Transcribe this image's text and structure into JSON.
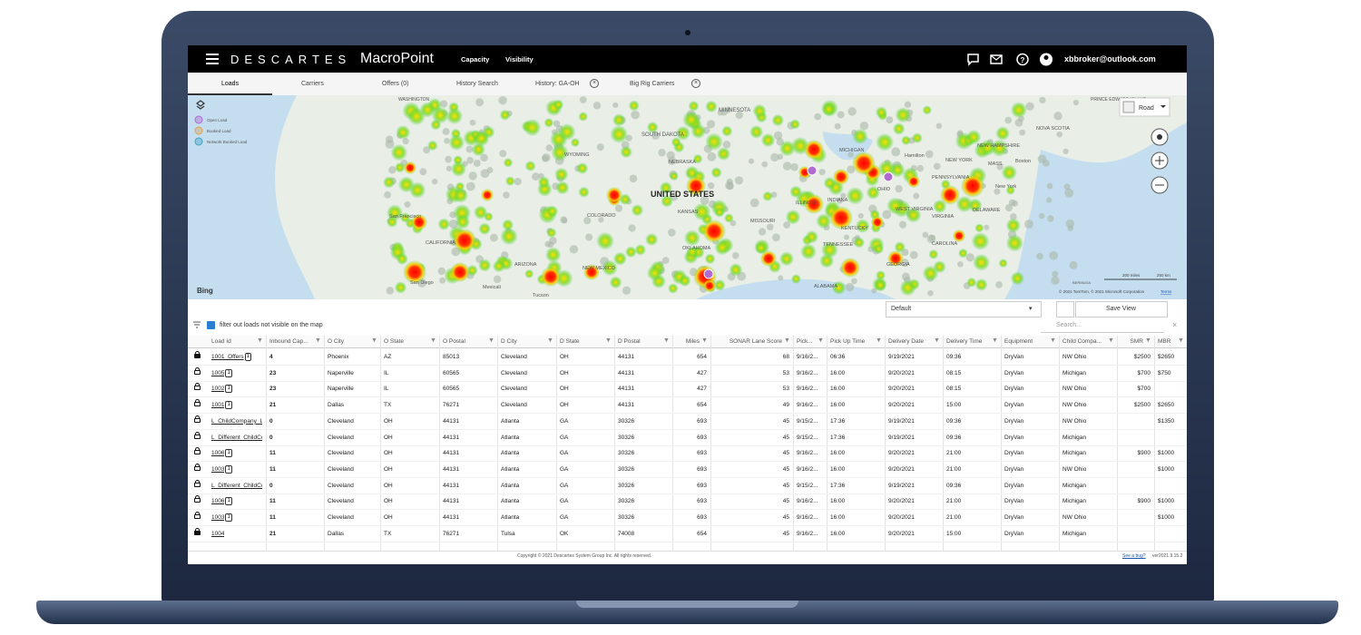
{
  "header": {
    "logo": "DESCARTES",
    "product": "MacroPoint",
    "nav": [
      "Capacity",
      "Visibility"
    ],
    "user": "xbbroker@outlook.com"
  },
  "tabs": [
    "Loads",
    "Carriers",
    "Offers (0)",
    "History Search",
    "History: GA-OH",
    "Big Rig Carriers"
  ],
  "map": {
    "legend": [
      "Open Load",
      "Booked Load",
      "Network Booked Load"
    ],
    "style": "Road",
    "provider": "Bing",
    "scale": [
      "200 miles",
      "250 km"
    ],
    "copyright": "© 2021 TomTom, © 2021 Microsoft Corporation",
    "terms": "Terms",
    "labels": [
      "UNITED STATES",
      "WASHINGTON",
      "MINNESOTA",
      "SOUTH DAKOTA",
      "WYOMING",
      "NEBRASKA",
      "COLORADO",
      "KANSAS",
      "OKLAHOMA",
      "NEW MEXICO",
      "ARIZONA",
      "CALIFORNIA",
      "MISSOURI",
      "ILLINOIS",
      "INDIANA",
      "OHIO",
      "KENTUCKY",
      "TENNESSEE",
      "GEORGIA",
      "ALABAMA",
      "MICHIGAN",
      "PENNSYLVANIA",
      "NEW YORK",
      "WEST VIRGINIA",
      "VIRGINIA",
      "CAROLINA",
      "DELAWARE",
      "NEW HAMPSHIRE",
      "MASS.",
      "Boston",
      "New York",
      "Hamilton",
      "NOVA SCOTIA",
      "PRINCE EDWARD ISLAND",
      "San Diego",
      "Mexicali",
      "Tucson",
      "San Francisco",
      "BERMUDA"
    ]
  },
  "toolbar": {
    "view": "Default",
    "save": "Save View",
    "filter": "filter out loads not visible on the map",
    "search": "Search..."
  },
  "table": {
    "columns": [
      "Load Id",
      "Inbound Cap...",
      "O City",
      "O State",
      "O Postal",
      "D City",
      "D State",
      "D Postal",
      "Miles",
      "SONAR Lane Score",
      "Pick...",
      "Pick Up Time",
      "Delivery Date",
      "Delivery Time",
      "Equipment",
      "Child Compa...",
      "SMR",
      "MBR"
    ],
    "rows": [
      {
        "badge": "1",
        "cells": [
          "1001_Offers",
          4,
          "Phoenix",
          "AZ",
          "85013",
          "Cleveland",
          "OH",
          "44131",
          654,
          68,
          "9/16/2...",
          "06:36",
          "9/19/2021",
          "09:36",
          "DryVan",
          "NW Ohio",
          "$2500",
          "$2650"
        ]
      },
      {
        "badge": "1",
        "cells": [
          "1005",
          23,
          "Naperville",
          "IL",
          "60565",
          "Cleveland",
          "OH",
          "44131",
          427,
          53,
          "9/16/2...",
          "16:00",
          "9/20/2021",
          "08:15",
          "DryVan",
          "Michigan",
          "$700",
          "$750"
        ]
      },
      {
        "badge": "1",
        "cells": [
          "1002",
          23,
          "Naperville",
          "IL",
          "60565",
          "Cleveland",
          "OH",
          "44131",
          427,
          53,
          "9/16/2...",
          "16:00",
          "9/20/2021",
          "08:15",
          "DryVan",
          "NW Ohio",
          "$700",
          null
        ]
      },
      {
        "badge": "1",
        "cells": [
          "1001",
          21,
          "Dallas",
          "TX",
          "76271",
          "Cleveland",
          "OH",
          "44131",
          654,
          49,
          "9/16/2...",
          "16:00",
          "9/20/2021",
          "15:00",
          "DryVan",
          "NW Ohio",
          "$2500",
          "$2650"
        ]
      },
      {
        "badge": null,
        "cells": [
          "L_ChildCompany_L...",
          0,
          "Cleveland",
          "OH",
          "44131",
          "Atlanta",
          "GA",
          "30326",
          693,
          45,
          "9/15/2...",
          "17:36",
          "9/19/2021",
          "09:36",
          "DryVan",
          "NW Ohio",
          null,
          "$1350"
        ]
      },
      {
        "badge": null,
        "cells": [
          "L_Different_ChildCo",
          0,
          "Cleveland",
          "OH",
          "44131",
          "Atlanta",
          "GA",
          "30326",
          693,
          45,
          "9/15/2...",
          "17:36",
          "9/19/2021",
          "09:36",
          "DryVan",
          "Michigan",
          null,
          null
        ]
      },
      {
        "badge": "1",
        "cells": [
          "1006",
          11,
          "Cleveland",
          "OH",
          "44131",
          "Atlanta",
          "GA",
          "30326",
          693,
          45,
          "9/16/2...",
          "16:00",
          "9/20/2021",
          "21:00",
          "DryVan",
          "Michigan",
          "$900",
          "$1000"
        ]
      },
      {
        "badge": "1",
        "cells": [
          "1003",
          11,
          "Cleveland",
          "OH",
          "44131",
          "Atlanta",
          "GA",
          "30326",
          693,
          45,
          "9/16/2...",
          "16:00",
          "9/20/2021",
          "21:00",
          "DryVan",
          "NW Ohio",
          null,
          "$1000"
        ]
      },
      {
        "badge": null,
        "cells": [
          "L_Different_ChildCo",
          0,
          "Cleveland",
          "OH",
          "44131",
          "Atlanta",
          "GA",
          "30326",
          693,
          45,
          "9/15/2...",
          "17:36",
          "9/19/2021",
          "09:36",
          "DryVan",
          "Michigan",
          null,
          null
        ]
      },
      {
        "badge": "1",
        "cells": [
          "1006",
          11,
          "Cleveland",
          "OH",
          "44131",
          "Atlanta",
          "GA",
          "30326",
          693,
          45,
          "9/16/2...",
          "16:00",
          "9/20/2021",
          "21:00",
          "DryVan",
          "Michigan",
          "$900",
          "$1000"
        ]
      },
      {
        "badge": "1",
        "cells": [
          "1003",
          11,
          "Cleveland",
          "OH",
          "44131",
          "Atlanta",
          "GA",
          "30326",
          693,
          45,
          "9/16/2...",
          "16:00",
          "9/20/2021",
          "21:00",
          "DryVan",
          "NW Ohio",
          null,
          "$1000"
        ]
      },
      {
        "badge": null,
        "cells": [
          "1004",
          21,
          "Dallas",
          "TX",
          "76271",
          "Tulsa",
          "OK",
          "74008",
          654,
          45,
          "9/16/2...",
          "16:00",
          "9/20/2021",
          "15:00",
          "DryVan",
          "Michigan",
          null,
          null
        ]
      }
    ]
  },
  "footer": {
    "copyright": "Copyright © 2021 Descartes System Group Inc. All rights reserved.",
    "bug": "See a bug?",
    "version": "ver2021.9.15.2"
  }
}
